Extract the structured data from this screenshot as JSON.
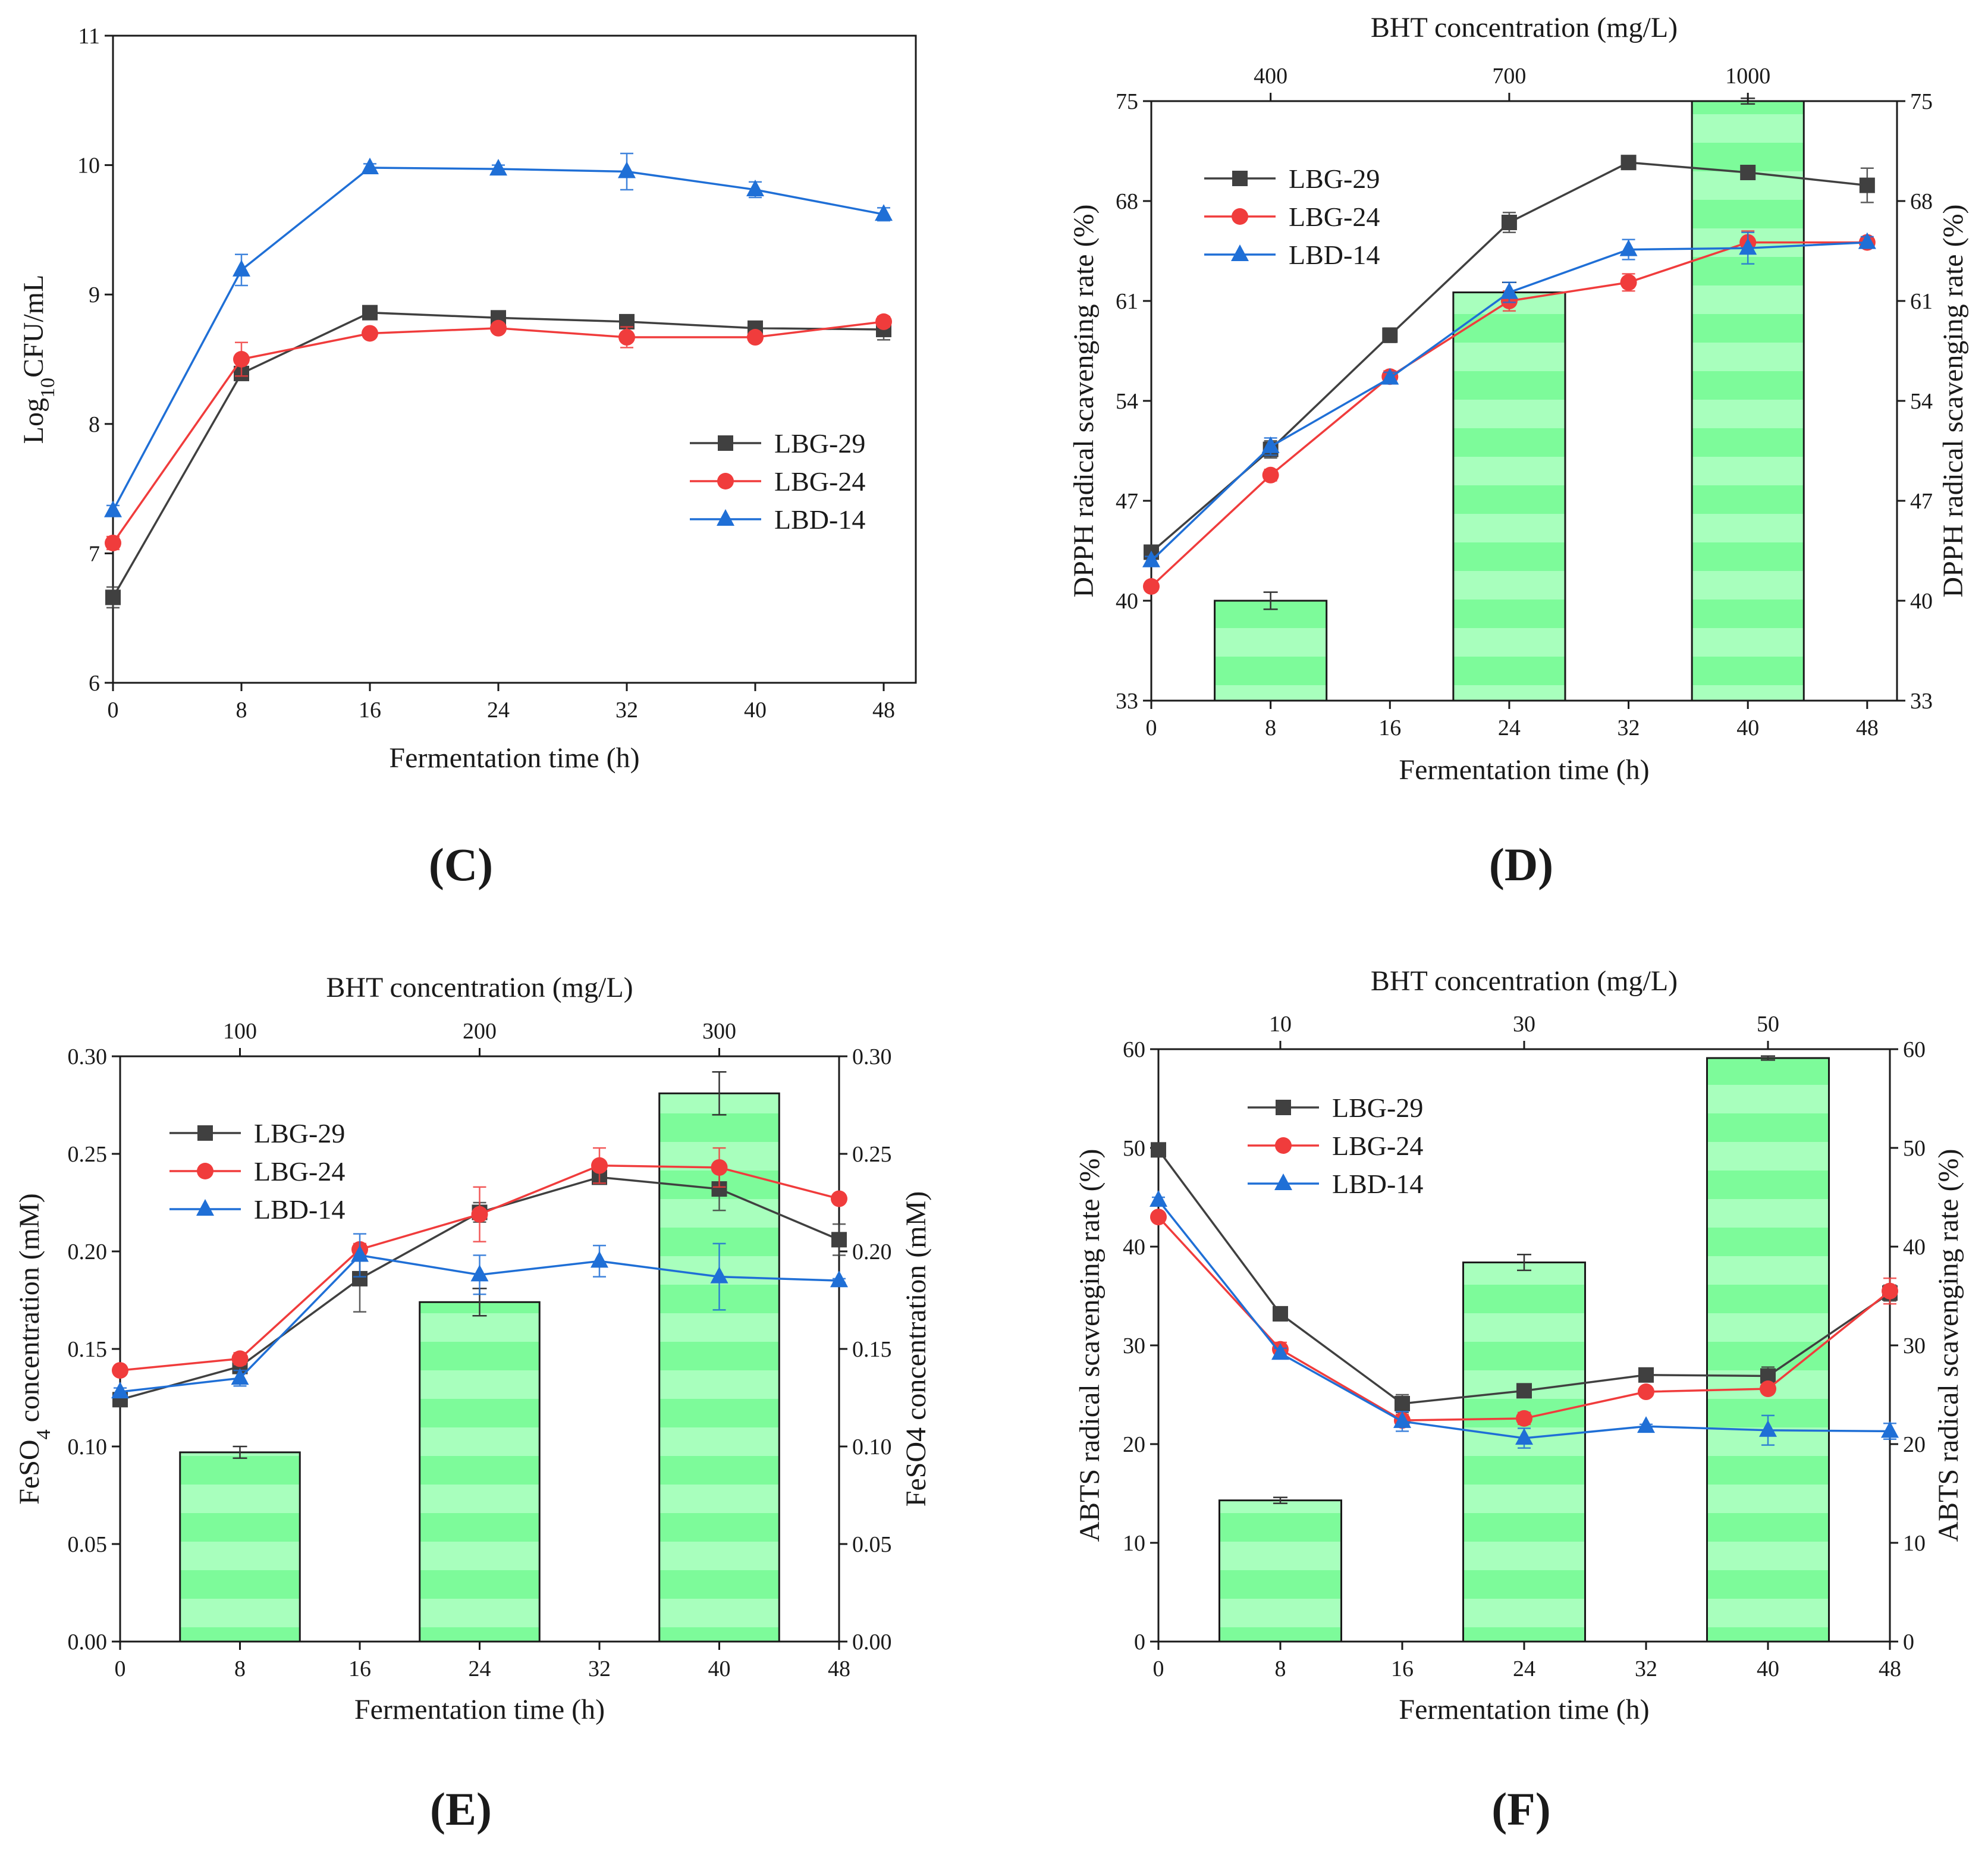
{
  "colors": {
    "LBG-29": "#404040",
    "LBG-24": "#f03c3c",
    "LBD-14": "#1f6fd6",
    "bar_fill": "#7dfb9a",
    "bar_stripe": "#a8ffbd"
  },
  "chart_data": [
    {
      "id": "C",
      "panel_label": "(C)",
      "type": "line",
      "xlabel": "Fermentation time (h)",
      "ylabel_html": [
        "Log",
        "10",
        "CFU/mL"
      ],
      "x": [
        0,
        8,
        16,
        24,
        32,
        40,
        48
      ],
      "x_ticks": [
        "0",
        "8",
        "16",
        "24",
        "32",
        "40",
        "48"
      ],
      "xlim": [
        0,
        50
      ],
      "ylim": [
        6,
        11
      ],
      "y_ticks": [
        "6",
        "7",
        "8",
        "9",
        "10",
        "11"
      ],
      "legend_position": "center-right",
      "series": [
        {
          "name": "LBG-29",
          "marker": "square",
          "values": [
            6.66,
            8.39,
            8.86,
            8.82,
            8.79,
            8.74,
            8.73
          ],
          "errors": [
            0.08,
            0.05,
            0.03,
            0.04,
            0.03,
            0.03,
            0.08
          ]
        },
        {
          "name": "LBG-24",
          "marker": "circle",
          "values": [
            7.08,
            8.5,
            8.7,
            8.74,
            8.67,
            8.67,
            8.79
          ],
          "errors": [
            0.05,
            0.13,
            0.03,
            0.03,
            0.08,
            0.03,
            0.04
          ]
        },
        {
          "name": "LBD-14",
          "marker": "triangle",
          "values": [
            7.33,
            9.19,
            9.98,
            9.97,
            9.95,
            9.81,
            9.62
          ],
          "errors": [
            0.04,
            0.12,
            0.03,
            0.03,
            0.14,
            0.06,
            0.05
          ]
        }
      ]
    },
    {
      "id": "D",
      "panel_label": "(D)",
      "type": "line+bar",
      "top_title": "BHT concentration (mg/L)",
      "xlabel": "Fermentation time (h)",
      "ylabel": "DPPH radical scavenging rate (%)",
      "ylabel_right": "DPPH radical scavenging rate (%)",
      "x": [
        0,
        8,
        16,
        24,
        32,
        40,
        48
      ],
      "x_ticks": [
        "0",
        "8",
        "16",
        "24",
        "32",
        "40",
        "48"
      ],
      "xlim": [
        0,
        50
      ],
      "ylim": [
        33,
        75
      ],
      "y_ticks": [
        "33",
        "40",
        "47",
        "54",
        "61",
        "68",
        "75"
      ],
      "bars": {
        "categories": [
          "400",
          "700",
          "1000"
        ],
        "x_center": [
          8,
          24,
          40
        ],
        "width": 7.5,
        "values": [
          40,
          61.6,
          75
        ],
        "errors": [
          0.6,
          0.7,
          0.2
        ]
      },
      "legend_position": "top-left",
      "series": [
        {
          "name": "LBG-29",
          "marker": "square",
          "values": [
            43.4,
            50.6,
            58.6,
            66.5,
            70.7,
            70.0,
            69.1
          ],
          "errors": [
            0.4,
            0.6,
            0.5,
            0.7,
            0.3,
            0.4,
            1.2
          ]
        },
        {
          "name": "LBG-24",
          "marker": "circle",
          "values": [
            41.0,
            48.8,
            55.7,
            61.0,
            62.3,
            65.1,
            65.1
          ],
          "errors": [
            0.3,
            0.4,
            0.4,
            0.7,
            0.6,
            0.8,
            0.3
          ]
        },
        {
          "name": "LBD-14",
          "marker": "triangle",
          "values": [
            42.8,
            50.8,
            55.6,
            61.6,
            64.6,
            64.7,
            65.1
          ],
          "errors": [
            0.3,
            0.6,
            0.4,
            0.7,
            0.7,
            1.1,
            0.4
          ]
        }
      ]
    },
    {
      "id": "E",
      "panel_label": "(E)",
      "type": "line+bar",
      "top_title": "BHT concentration (mg/L)",
      "xlabel": "Fermentation time (h)",
      "ylabel_html": [
        "FeSO",
        "4",
        " concentration (mM)"
      ],
      "ylabel_right": "FeSO4 concentration (mM)",
      "x": [
        0,
        8,
        16,
        24,
        32,
        40,
        48
      ],
      "x_ticks": [
        "0",
        "8",
        "16",
        "24",
        "32",
        "40",
        "48"
      ],
      "xlim": [
        0,
        48
      ],
      "ylim": [
        0,
        0.3
      ],
      "y_ticks": [
        "0.00",
        "0.05",
        "0.10",
        "0.15",
        "0.20",
        "0.25",
        "0.30"
      ],
      "bars": {
        "categories": [
          "100",
          "200",
          "300"
        ],
        "x_center": [
          8,
          24,
          40
        ],
        "width": 8,
        "values": [
          0.097,
          0.174,
          0.281
        ],
        "errors": [
          0.003,
          0.007,
          0.011
        ]
      },
      "legend_position": "top-left",
      "series": [
        {
          "name": "LBG-29",
          "marker": "square",
          "values": [
            0.124,
            0.141,
            0.186,
            0.22,
            0.238,
            0.232,
            0.206
          ],
          "errors": [
            0.003,
            0.003,
            0.017,
            0.005,
            0.002,
            0.011,
            0.008
          ]
        },
        {
          "name": "LBG-24",
          "marker": "circle",
          "values": [
            0.139,
            0.145,
            0.201,
            0.219,
            0.244,
            0.243,
            0.227
          ],
          "errors": [
            0.002,
            0.003,
            0.003,
            0.014,
            0.009,
            0.01,
            0.002
          ]
        },
        {
          "name": "LBD-14",
          "marker": "triangle",
          "values": [
            0.128,
            0.135,
            0.198,
            0.188,
            0.195,
            0.187,
            0.185
          ],
          "errors": [
            0.002,
            0.004,
            0.011,
            0.01,
            0.008,
            0.017,
            0.001
          ]
        }
      ]
    },
    {
      "id": "F",
      "panel_label": "(F)",
      "type": "line+bar",
      "top_title": "BHT concentration (mg/L)",
      "xlabel": "Fermentation time (h)",
      "ylabel": "ABTS radical scavenging rate (%)",
      "ylabel_right": "ABTS radical scavenging rate (%)",
      "x": [
        0,
        8,
        16,
        24,
        32,
        40,
        48
      ],
      "x_ticks": [
        "0",
        "8",
        "16",
        "24",
        "32",
        "40",
        "48"
      ],
      "xlim": [
        0,
        48
      ],
      "ylim": [
        0,
        60
      ],
      "y_ticks": [
        "0",
        "10",
        "20",
        "30",
        "40",
        "50",
        "60"
      ],
      "bars": {
        "categories": [
          "10",
          "30",
          "50"
        ],
        "x_center": [
          8,
          24,
          40
        ],
        "width": 8,
        "values": [
          14.3,
          38.4,
          59.1
        ],
        "errors": [
          0.3,
          0.8,
          0.2
        ]
      },
      "legend_position": "top-left",
      "series": [
        {
          "name": "LBG-29",
          "marker": "square",
          "values": [
            49.8,
            33.2,
            24.1,
            25.4,
            27.0,
            26.9,
            35.3
          ],
          "errors": [
            0.3,
            0.7,
            0.9,
            0.3,
            0.2,
            0.9,
            0.8
          ]
        },
        {
          "name": "LBG-24",
          "marker": "circle",
          "values": [
            43.0,
            29.6,
            22.4,
            22.6,
            25.3,
            25.6,
            35.5
          ],
          "errors": [
            0.3,
            0.7,
            0.6,
            0.6,
            0.2,
            0.3,
            1.3
          ]
        },
        {
          "name": "LBD-14",
          "marker": "triangle",
          "values": [
            44.7,
            29.2,
            22.3,
            20.6,
            21.8,
            21.4,
            21.3
          ],
          "errors": [
            0.3,
            0.5,
            1.0,
            1.0,
            0.2,
            1.5,
            0.8
          ]
        }
      ]
    }
  ]
}
